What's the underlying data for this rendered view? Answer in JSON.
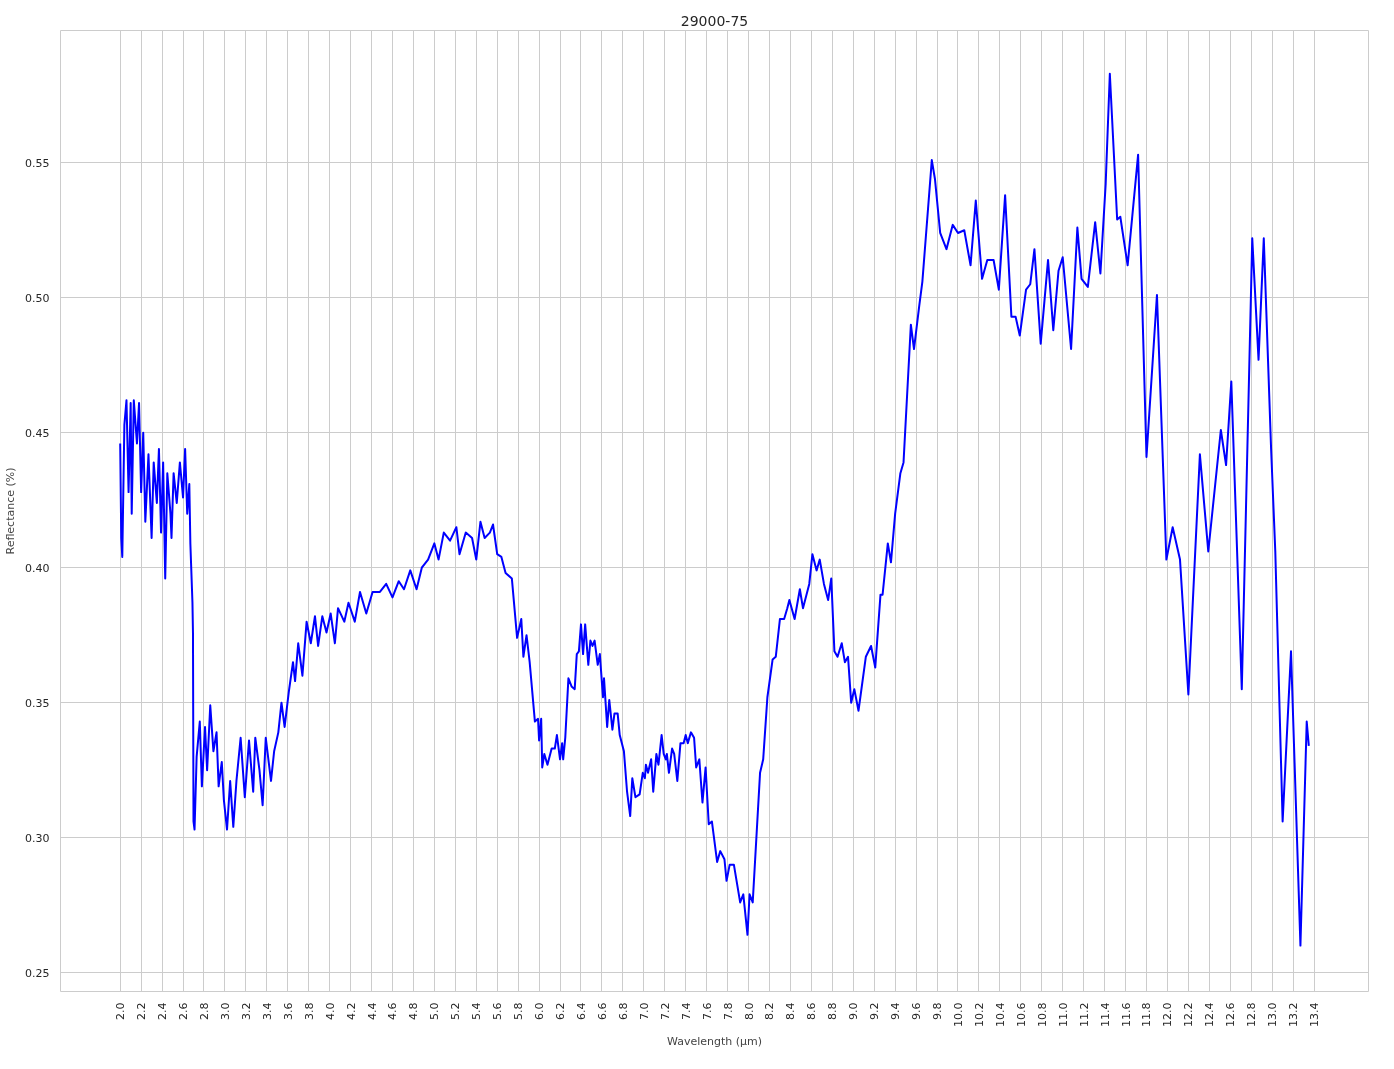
{
  "chart_data": {
    "type": "line",
    "title": "29000-75",
    "xlabel": "Wavelength (µm)",
    "ylabel": "Reflectance (%)",
    "xlim": [
      1.43,
      13.92
    ],
    "ylim": [
      0.243,
      0.599
    ],
    "xticks": [
      {
        "value": 2.0,
        "label": "2.0"
      },
      {
        "value": 2.2,
        "label": "2.2"
      },
      {
        "value": 2.4,
        "label": "2.4"
      },
      {
        "value": 2.6,
        "label": "2.6"
      },
      {
        "value": 2.8,
        "label": "2.8"
      },
      {
        "value": 3.0,
        "label": "3.0"
      },
      {
        "value": 3.2,
        "label": "3.2"
      },
      {
        "value": 3.4,
        "label": "3.4"
      },
      {
        "value": 3.6,
        "label": "3.6"
      },
      {
        "value": 3.8,
        "label": "3.8"
      },
      {
        "value": 4.0,
        "label": "4.0"
      },
      {
        "value": 4.2,
        "label": "4.2"
      },
      {
        "value": 4.4,
        "label": "4.4"
      },
      {
        "value": 4.6,
        "label": "4.6"
      },
      {
        "value": 4.8,
        "label": "4.8"
      },
      {
        "value": 5.0,
        "label": "5.0"
      },
      {
        "value": 5.2,
        "label": "5.2"
      },
      {
        "value": 5.4,
        "label": "5.4"
      },
      {
        "value": 5.6,
        "label": "5.6"
      },
      {
        "value": 5.8,
        "label": "5.8"
      },
      {
        "value": 6.0,
        "label": "6.0"
      },
      {
        "value": 6.2,
        "label": "6.2"
      },
      {
        "value": 6.4,
        "label": "6.4"
      },
      {
        "value": 6.6,
        "label": "6.6"
      },
      {
        "value": 6.8,
        "label": "6.8"
      },
      {
        "value": 7.0,
        "label": "7.0"
      },
      {
        "value": 7.2,
        "label": "7.2"
      },
      {
        "value": 7.4,
        "label": "7.4"
      },
      {
        "value": 7.6,
        "label": "7.6"
      },
      {
        "value": 7.8,
        "label": "7.8"
      },
      {
        "value": 8.0,
        "label": "8.0"
      },
      {
        "value": 8.2,
        "label": "8.2"
      },
      {
        "value": 8.4,
        "label": "8.4"
      },
      {
        "value": 8.6,
        "label": "8.6"
      },
      {
        "value": 8.8,
        "label": "8.8"
      },
      {
        "value": 9.0,
        "label": "9.0"
      },
      {
        "value": 9.2,
        "label": "9.2"
      },
      {
        "value": 9.4,
        "label": "9.4"
      },
      {
        "value": 9.6,
        "label": "9.6"
      },
      {
        "value": 9.8,
        "label": "9.8"
      },
      {
        "value": 10.0,
        "label": "10.0"
      },
      {
        "value": 10.2,
        "label": "10.2"
      },
      {
        "value": 10.4,
        "label": "10.4"
      },
      {
        "value": 10.6,
        "label": "10.6"
      },
      {
        "value": 10.8,
        "label": "10.8"
      },
      {
        "value": 11.0,
        "label": "11.0"
      },
      {
        "value": 11.2,
        "label": "11.2"
      },
      {
        "value": 11.4,
        "label": "11.4"
      },
      {
        "value": 11.6,
        "label": "11.6"
      },
      {
        "value": 11.8,
        "label": "11.8"
      },
      {
        "value": 12.0,
        "label": "12.0"
      },
      {
        "value": 12.2,
        "label": "12.2"
      },
      {
        "value": 12.4,
        "label": "12.4"
      },
      {
        "value": 12.6,
        "label": "12.6"
      },
      {
        "value": 12.8,
        "label": "12.8"
      },
      {
        "value": 13.0,
        "label": "13.0"
      },
      {
        "value": 13.2,
        "label": "13.2"
      },
      {
        "value": 13.4,
        "label": "13.4"
      }
    ],
    "yticks": [
      {
        "value": 0.25,
        "label": "0.25"
      },
      {
        "value": 0.3,
        "label": "0.30"
      },
      {
        "value": 0.35,
        "label": "0.35"
      },
      {
        "value": 0.4,
        "label": "0.40"
      },
      {
        "value": 0.45,
        "label": "0.45"
      },
      {
        "value": 0.5,
        "label": "0.50"
      },
      {
        "value": 0.55,
        "label": "0.55"
      }
    ],
    "grid": true,
    "line_style": "solid",
    "series": [
      {
        "color": "#0000ff",
        "x": [
          2.0,
          2.01,
          2.02,
          2.04,
          2.06,
          2.08,
          2.1,
          2.11,
          2.13,
          2.16,
          2.18,
          2.2,
          2.22,
          2.24,
          2.27,
          2.3,
          2.32,
          2.35,
          2.37,
          2.39,
          2.41,
          2.43,
          2.45,
          2.48,
          2.49,
          2.51,
          2.54,
          2.57,
          2.6,
          2.62,
          2.64,
          2.66,
          2.67,
          2.69,
          2.695,
          2.7,
          2.71,
          2.73,
          2.76,
          2.78,
          2.81,
          2.83,
          2.86,
          2.89,
          2.92,
          2.94,
          2.97,
          2.99,
          3.02,
          3.05,
          3.08,
          3.11,
          3.15,
          3.19,
          3.23,
          3.27,
          3.29,
          3.33,
          3.36,
          3.39,
          3.44,
          3.47,
          3.51,
          3.54,
          3.57,
          3.61,
          3.65,
          3.67,
          3.7,
          3.74,
          3.78,
          3.82,
          3.86,
          3.89,
          3.93,
          3.97,
          4.01,
          4.05,
          4.08,
          4.14,
          4.18,
          4.24,
          4.29,
          4.35,
          4.41,
          4.48,
          4.54,
          4.6,
          4.66,
          4.71,
          4.77,
          4.83,
          4.88,
          4.94,
          5.0,
          5.04,
          5.09,
          5.15,
          5.21,
          5.24,
          5.3,
          5.36,
          5.4,
          5.44,
          5.48,
          5.53,
          5.56,
          5.6,
          5.64,
          5.68,
          5.74,
          5.79,
          5.83,
          5.85,
          5.88,
          5.91,
          5.96,
          5.99,
          6.0,
          6.02,
          6.03,
          6.05,
          6.08,
          6.12,
          6.15,
          6.17,
          6.2,
          6.22,
          6.23,
          6.25,
          6.28,
          6.31,
          6.34,
          6.36,
          6.38,
          6.4,
          6.42,
          6.44,
          6.47,
          6.49,
          6.51,
          6.53,
          6.56,
          6.58,
          6.61,
          6.62,
          6.65,
          6.67,
          6.7,
          6.72,
          6.75,
          6.77,
          6.81,
          6.84,
          6.87,
          6.89,
          6.92,
          6.96,
          6.99,
          7.01,
          7.02,
          7.04,
          7.07,
          7.09,
          7.12,
          7.14,
          7.17,
          7.19,
          7.21,
          7.22,
          7.24,
          7.27,
          7.29,
          7.32,
          7.35,
          7.38,
          7.4,
          7.42,
          7.45,
          7.48,
          7.5,
          7.53,
          7.56,
          7.59,
          7.62,
          7.65,
          7.7,
          7.73,
          7.77,
          7.79,
          7.82,
          7.86,
          7.92,
          7.95,
          7.99,
          8.01,
          8.04,
          8.11,
          8.14,
          8.18,
          8.23,
          8.26,
          8.3,
          8.34,
          8.37,
          8.39,
          8.44,
          8.49,
          8.52,
          8.58,
          8.61,
          8.65,
          8.68,
          8.72,
          8.76,
          8.79,
          8.82,
          8.85,
          8.89,
          8.92,
          8.95,
          8.98,
          9.01,
          9.05,
          9.12,
          9.17,
          9.21,
          9.26,
          9.28,
          9.33,
          9.36,
          9.4,
          9.45,
          9.48,
          9.55,
          9.58,
          9.63,
          9.66,
          9.75,
          9.78,
          9.83,
          9.89,
          9.95,
          10.0,
          10.06,
          10.12,
          10.17,
          10.23,
          10.28,
          10.34,
          10.39,
          10.45,
          10.51,
          10.55,
          10.59,
          10.65,
          10.69,
          10.73,
          10.79,
          10.86,
          10.91,
          10.96,
          11.0,
          11.08,
          11.14,
          11.18,
          11.24,
          11.31,
          11.36,
          11.41,
          11.45,
          11.52,
          11.55,
          11.62,
          11.72,
          11.8,
          11.9,
          11.99,
          12.05,
          12.12,
          12.2,
          12.31,
          12.39,
          12.51,
          12.56,
          12.61,
          12.71,
          12.81,
          12.87,
          12.92,
          12.99,
          13.03,
          13.1,
          13.18,
          13.27,
          13.33,
          13.35
        ],
        "values": [
          0.446,
          0.411,
          0.404,
          0.453,
          0.462,
          0.428,
          0.461,
          0.42,
          0.462,
          0.446,
          0.461,
          0.428,
          0.45,
          0.417,
          0.442,
          0.411,
          0.439,
          0.424,
          0.444,
          0.413,
          0.439,
          0.396,
          0.435,
          0.42,
          0.411,
          0.435,
          0.424,
          0.439,
          0.426,
          0.444,
          0.42,
          0.431,
          0.409,
          0.387,
          0.376,
          0.306,
          0.303,
          0.33,
          0.343,
          0.319,
          0.341,
          0.325,
          0.349,
          0.332,
          0.339,
          0.319,
          0.328,
          0.314,
          0.303,
          0.321,
          0.304,
          0.321,
          0.337,
          0.315,
          0.336,
          0.317,
          0.337,
          0.325,
          0.312,
          0.337,
          0.321,
          0.332,
          0.339,
          0.35,
          0.341,
          0.354,
          0.365,
          0.358,
          0.372,
          0.36,
          0.38,
          0.372,
          0.382,
          0.371,
          0.382,
          0.376,
          0.383,
          0.372,
          0.385,
          0.38,
          0.387,
          0.38,
          0.391,
          0.383,
          0.391,
          0.391,
          0.394,
          0.389,
          0.395,
          0.392,
          0.399,
          0.392,
          0.4,
          0.403,
          0.409,
          0.403,
          0.413,
          0.41,
          0.415,
          0.405,
          0.413,
          0.411,
          0.403,
          0.417,
          0.411,
          0.413,
          0.416,
          0.405,
          0.404,
          0.398,
          0.396,
          0.374,
          0.381,
          0.367,
          0.375,
          0.365,
          0.343,
          0.344,
          0.336,
          0.344,
          0.326,
          0.331,
          0.327,
          0.333,
          0.333,
          0.338,
          0.329,
          0.335,
          0.329,
          0.337,
          0.359,
          0.356,
          0.355,
          0.368,
          0.369,
          0.379,
          0.368,
          0.379,
          0.364,
          0.373,
          0.371,
          0.373,
          0.364,
          0.368,
          0.352,
          0.359,
          0.341,
          0.351,
          0.34,
          0.346,
          0.346,
          0.338,
          0.332,
          0.317,
          0.308,
          0.322,
          0.315,
          0.316,
          0.324,
          0.322,
          0.327,
          0.324,
          0.329,
          0.317,
          0.331,
          0.327,
          0.338,
          0.331,
          0.329,
          0.331,
          0.324,
          0.333,
          0.331,
          0.321,
          0.335,
          0.335,
          0.338,
          0.335,
          0.339,
          0.337,
          0.326,
          0.329,
          0.313,
          0.326,
          0.305,
          0.306,
          0.291,
          0.295,
          0.292,
          0.284,
          0.29,
          0.29,
          0.276,
          0.279,
          0.264,
          0.279,
          0.276,
          0.324,
          0.329,
          0.352,
          0.366,
          0.367,
          0.381,
          0.381,
          0.385,
          0.388,
          0.381,
          0.392,
          0.385,
          0.394,
          0.405,
          0.399,
          0.403,
          0.394,
          0.388,
          0.396,
          0.369,
          0.367,
          0.372,
          0.365,
          0.367,
          0.35,
          0.355,
          0.347,
          0.367,
          0.371,
          0.363,
          0.39,
          0.39,
          0.409,
          0.402,
          0.42,
          0.435,
          0.439,
          0.49,
          0.481,
          0.497,
          0.506,
          0.551,
          0.544,
          0.524,
          0.518,
          0.527,
          0.524,
          0.525,
          0.512,
          0.536,
          0.507,
          0.514,
          0.514,
          0.503,
          0.538,
          0.493,
          0.493,
          0.486,
          0.503,
          0.505,
          0.518,
          0.483,
          0.514,
          0.488,
          0.51,
          0.515,
          0.481,
          0.526,
          0.507,
          0.504,
          0.528,
          0.509,
          0.542,
          0.583,
          0.529,
          0.53,
          0.512,
          0.553,
          0.441,
          0.501,
          0.403,
          0.415,
          0.403,
          0.353,
          0.442,
          0.406,
          0.451,
          0.438,
          0.469,
          0.355,
          0.522,
          0.477,
          0.522,
          0.444,
          0.406,
          0.306,
          0.369,
          0.26,
          0.343,
          0.334
        ]
      }
    ]
  }
}
